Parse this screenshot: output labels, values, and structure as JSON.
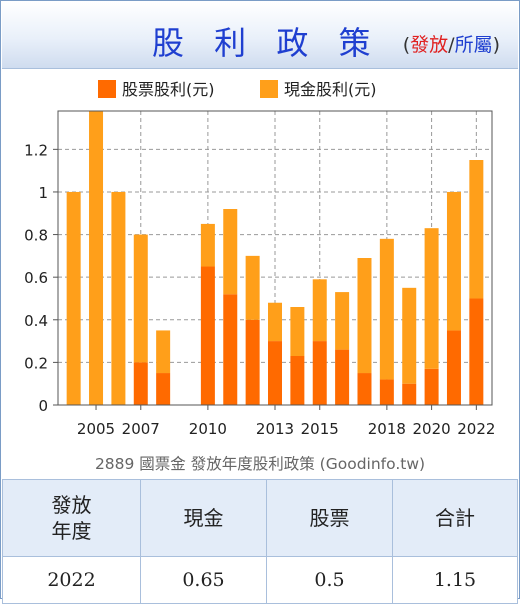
{
  "header": {
    "title": "股 利 政 策",
    "link_open": "(",
    "link_issue": "發放",
    "link_sep": "/",
    "link_belong": "所屬",
    "link_close": ")"
  },
  "caption": "2889 國票金 發放年度股利政策 (Goodinfo.tw)",
  "table": {
    "headers": [
      "發放\n年度",
      "現金",
      "股票",
      "合計"
    ],
    "row": [
      "2022",
      "0.65",
      "0.5",
      "1.15"
    ]
  },
  "chart_data": {
    "type": "bar",
    "stacked": true,
    "x": [
      2004,
      2005,
      2006,
      2007,
      2008,
      2010,
      2011,
      2012,
      2013,
      2014,
      2015,
      2016,
      2017,
      2018,
      2019,
      2020,
      2021,
      2022
    ],
    "series": [
      {
        "name": "股票股利(元)",
        "color": "#ff6a00",
        "values": [
          0,
          0,
          0,
          0.2,
          0.15,
          0.65,
          0.52,
          0.4,
          0.3,
          0.23,
          0.3,
          0.26,
          0.15,
          0.12,
          0.1,
          0.17,
          0.35,
          0.5
        ]
      },
      {
        "name": "現金股利(元)",
        "color": "#ff9f1a",
        "values": [
          1.0,
          1.4,
          1.0,
          0.6,
          0.2,
          0.2,
          0.4,
          0.3,
          0.18,
          0.23,
          0.29,
          0.27,
          0.54,
          0.66,
          0.45,
          0.66,
          0.65,
          0.65
        ]
      }
    ],
    "x_tick_labels": [
      "2005",
      "2007",
      "2010",
      "2013",
      "2015",
      "2018",
      "2020",
      "2022"
    ],
    "x_tick_values": [
      2005,
      2007,
      2010,
      2013,
      2015,
      2018,
      2020,
      2022
    ],
    "y_ticks": [
      0,
      0.2,
      0.4,
      0.6,
      0.8,
      1,
      1.2
    ],
    "y_tick_labels": [
      "0",
      "0.2",
      "0.4",
      "0.6",
      "0.8",
      "1",
      "1.2"
    ],
    "ylim": [
      0,
      1.38
    ],
    "xlim": [
      2003.3,
      2022.7
    ],
    "grid": true,
    "legend_position": "top"
  }
}
